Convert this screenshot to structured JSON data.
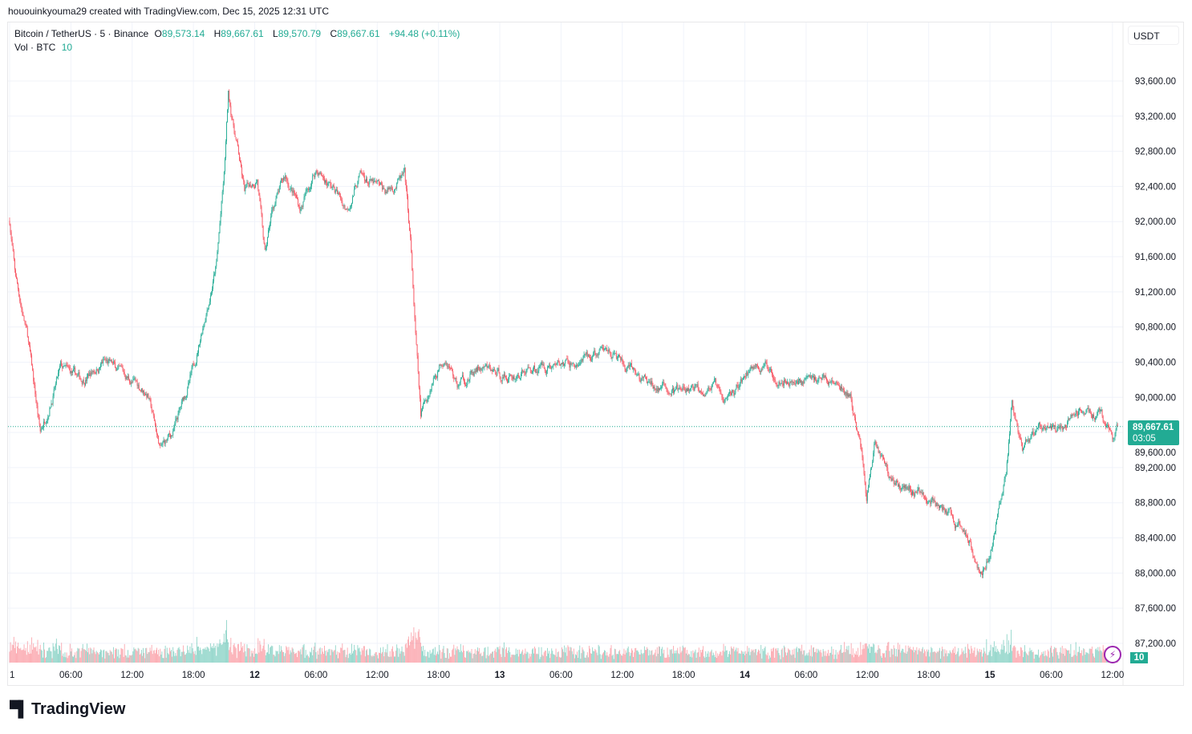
{
  "creator_line": "hououinkyouma29 created with TradingView.com, Dec 15, 2025 12:31 UTC",
  "legend": {
    "symbol": "Bitcoin / TetherUS · 5 · Binance",
    "open_prefix": "O",
    "open": "89,573.14",
    "high_prefix": "H",
    "high": "89,667.61",
    "low_prefix": "L",
    "low": "89,570.79",
    "close_prefix": "C",
    "close": "89,667.61",
    "change": "+94.48 (+0.11%)",
    "vol_label": "Vol · BTC",
    "vol_value": "10"
  },
  "currency_button": "USDT",
  "last_price": {
    "price": "89,667.61",
    "countdown": "03:05"
  },
  "volume_badge": "10",
  "alert_icon": "lightning-icon",
  "logo_text": "TradingView",
  "colors": {
    "up": "#22ab94",
    "down": "#f7525f",
    "grid": "#f0f3fa",
    "last_price": "#22ab94",
    "alert": "#9c27b0"
  },
  "chart_data": {
    "type": "candlestick",
    "symbol": "BTCUSDT",
    "interval": "5",
    "ylim": [
      87000,
      94000
    ],
    "y_ticks": [
      "87,200.00",
      "87,600.00",
      "88,000.00",
      "88,400.00",
      "88,800.00",
      "89,200.00",
      "89,600.00",
      "90,000.00",
      "90,400.00",
      "90,800.00",
      "91,200.00",
      "91,600.00",
      "92,000.00",
      "92,400.00",
      "92,800.00",
      "93,200.00",
      "93,600.00"
    ],
    "x_ticks": [
      "1",
      "06:00",
      "12:00",
      "18:00",
      "12",
      "06:00",
      "12:00",
      "18:00",
      "13",
      "06:00",
      "12:00",
      "18:00",
      "14",
      "06:00",
      "12:00",
      "18:00",
      "15",
      "06:00",
      "12:00"
    ],
    "grid": true,
    "price_path": [
      [
        "12-11 00:00",
        92010
      ],
      [
        "12-11 00:30",
        91420
      ],
      [
        "12-11 01:45",
        90690
      ],
      [
        "12-11 03:00",
        89590
      ],
      [
        "12-11 03:45",
        89870
      ],
      [
        "12-11 05:00",
        90320
      ],
      [
        "12-11 07:00",
        90190
      ],
      [
        "12-11 09:15",
        90410
      ],
      [
        "12-11 11:30",
        90230
      ],
      [
        "12-11 13:30",
        90050
      ],
      [
        "12-11 14:45",
        89410
      ],
      [
        "12-11 16:00",
        89590
      ],
      [
        "12-11 18:00",
        90320
      ],
      [
        "12-11 19:00",
        90870
      ],
      [
        "12-11 20:15",
        91510
      ],
      [
        "12-11 21:00",
        92510
      ],
      [
        "12-11 21:25",
        93430
      ],
      [
        "12-11 22:15",
        92880
      ],
      [
        "12-11 23:00",
        92330
      ],
      [
        "12-12 00:15",
        92510
      ],
      [
        "12-12 01:00",
        91600
      ],
      [
        "12-12 01:45",
        92150
      ],
      [
        "12-12 03:00",
        92510
      ],
      [
        "12-12 04:30",
        92150
      ],
      [
        "12-12 06:00",
        92600
      ],
      [
        "12-12 08:00",
        92330
      ],
      [
        "12-12 09:00",
        92150
      ],
      [
        "12-12 10:15",
        92510
      ],
      [
        "12-12 12:45",
        92330
      ],
      [
        "12-12 14:40",
        92510
      ],
      [
        "12-12 15:15",
        91780
      ],
      [
        "12-12 15:45",
        90690
      ],
      [
        "12-12 16:15",
        89770
      ],
      [
        "12-12 17:30",
        90230
      ],
      [
        "12-12 18:40",
        90500
      ],
      [
        "12-12 19:50",
        90140
      ],
      [
        "12-12 22:00",
        90320
      ],
      [
        "12-13 01:00",
        90230
      ],
      [
        "12-13 04:15",
        90370
      ],
      [
        "12-13 07:30",
        90370
      ],
      [
        "12-13 10:45",
        90550
      ],
      [
        "12-13 12:20",
        90320
      ],
      [
        "12-13 14:40",
        90140
      ],
      [
        "12-13 17:50",
        90050
      ],
      [
        "12-13 21:00",
        90140
      ],
      [
        "12-13 21:50",
        89910
      ],
      [
        "12-14 00:55",
        90370
      ],
      [
        "12-14 04:50",
        90190
      ],
      [
        "12-14 08:00",
        90230
      ],
      [
        "12-14 10:20",
        90000
      ],
      [
        "12-14 11:30",
        89320
      ],
      [
        "12-14 11:55",
        88860
      ],
      [
        "12-14 12:45",
        89500
      ],
      [
        "12-14 14:35",
        89040
      ],
      [
        "12-14 16:35",
        88950
      ],
      [
        "12-14 18:10",
        88860
      ],
      [
        "12-14 19:40",
        88680
      ],
      [
        "12-14 22:05",
        88400
      ],
      [
        "12-14 23:15",
        87950
      ],
      [
        "12-15 00:30",
        88500
      ],
      [
        "12-15 01:35",
        89140
      ],
      [
        "12-15 02:10",
        89960
      ],
      [
        "12-15 03:10",
        89320
      ],
      [
        "12-15 04:45",
        89680
      ],
      [
        "12-15 06:40",
        89590
      ],
      [
        "12-15 08:40",
        89870
      ],
      [
        "12-15 10:40",
        89820
      ],
      [
        "12-15 12:10",
        89500
      ],
      [
        "12-15 12:30",
        89667.61
      ]
    ]
  }
}
